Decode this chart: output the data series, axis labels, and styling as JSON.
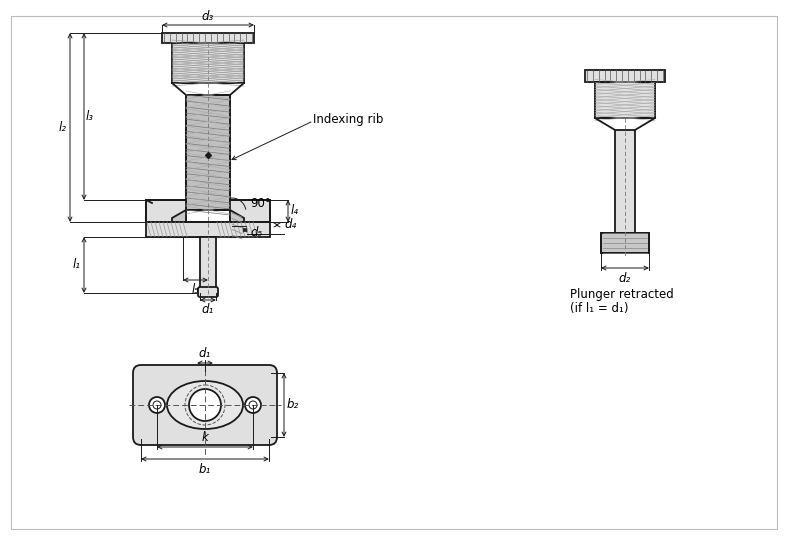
{
  "bg_color": "#ffffff",
  "lc": "#1a1a1a",
  "lw_main": 1.3,
  "lw_dim": 0.7,
  "lw_thin": 0.8,
  "fs": 8.5,
  "fill_light": "#e0e0e0",
  "fill_med": "#c8c8c8",
  "fill_dark": "#b0b0b0",
  "fill_hatch": "#d0d0d0",
  "labels": {
    "d1": "d₁",
    "d2": "d₂",
    "d3": "d₃",
    "d4": "d₄",
    "d5": "d₅",
    "l1": "l₁",
    "l2": "l₂",
    "l3": "l₃",
    "l4": "l₄",
    "l5": "l₅",
    "k": "k",
    "b1": "b₁",
    "b2": "b₂",
    "indexing_rib": "Indexing rib",
    "angle": "90°",
    "plunger_retracted": "Plunger retracted",
    "if_condition": "(if l₁ = d₁)"
  }
}
